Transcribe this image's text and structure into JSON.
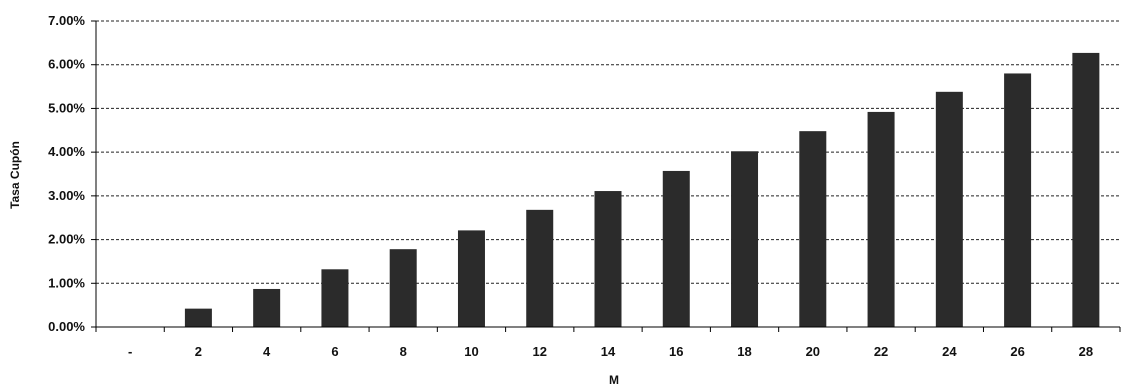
{
  "chart_data": {
    "type": "bar",
    "title": "",
    "xlabel": "M",
    "ylabel": "Tasa Cupón",
    "categories": [
      "-",
      "2",
      "4",
      "6",
      "8",
      "10",
      "12",
      "14",
      "16",
      "18",
      "20",
      "22",
      "24",
      "26",
      "28"
    ],
    "values": [
      0.0,
      0.0042,
      0.0087,
      0.0132,
      0.0178,
      0.0221,
      0.0268,
      0.0311,
      0.0357,
      0.0402,
      0.0448,
      0.0492,
      0.0538,
      0.058,
      0.0627
    ],
    "ylim": [
      0,
      0.07
    ],
    "yticks": [
      0,
      0.01,
      0.02,
      0.03,
      0.04,
      0.05,
      0.06,
      0.07
    ],
    "ytick_labels": [
      "0.00%",
      "1.00%",
      "2.00%",
      "3.00%",
      "4.00%",
      "5.00%",
      "6.00%",
      "7.00%"
    ],
    "grid": "horizontal dashed",
    "legend": "none",
    "bar_color": "#2b2b2b"
  }
}
